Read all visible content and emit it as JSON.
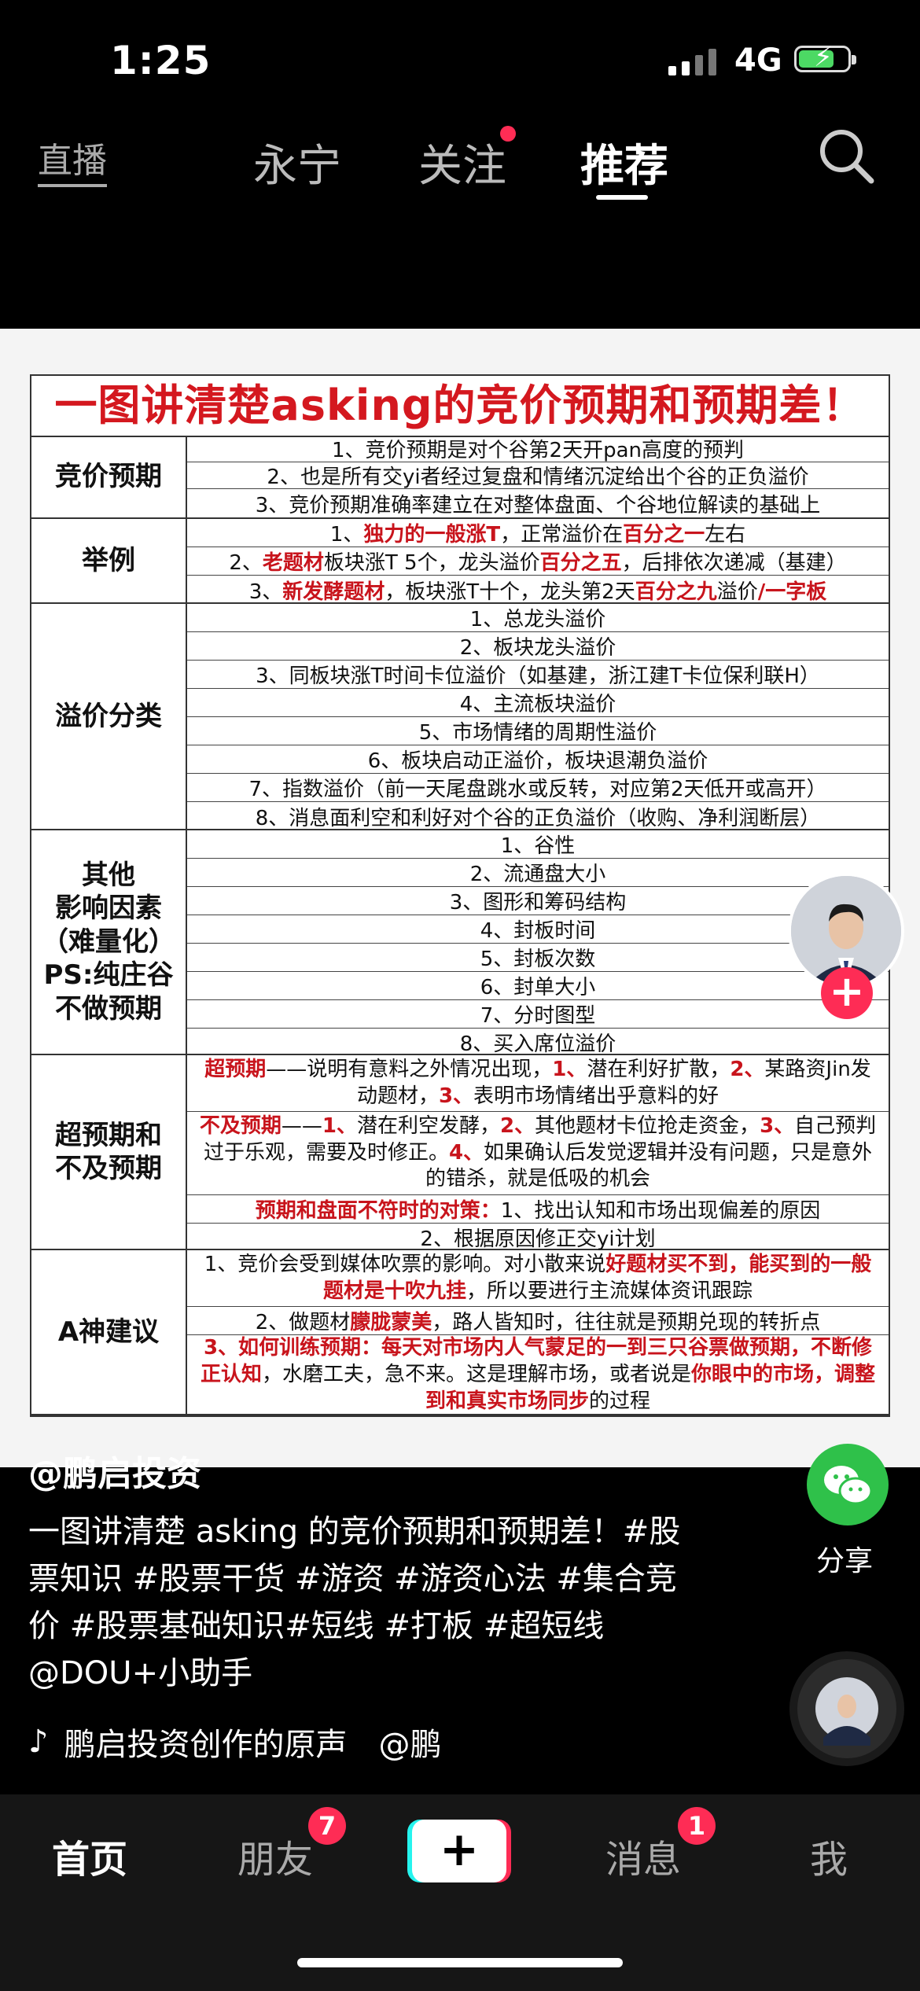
{
  "status": {
    "time": "1:25",
    "network": "4G"
  },
  "topnav": {
    "live": "直播",
    "local": "永宁",
    "follow": "关注",
    "recommend": "推荐"
  },
  "doc": {
    "title": "一图讲清楚asking的竞价预期和预期差！",
    "sections": [
      {
        "label": "竞价预期",
        "rows": [
          "1、竞价预期是对个谷第2天开pan高度的预判",
          "2、也是所有交yi者经过复盘和情绪沉淀给出个谷的正负溢价",
          "3、竞价预期准确率建立在对整体盘面、个谷地位解读的基础上"
        ]
      },
      {
        "label": "举例",
        "rows": [
          [
            "1、",
            {
              "r": "独力的一般涨T"
            },
            "，正常溢价在",
            {
              "r": "百分之一"
            },
            "左右"
          ],
          [
            "2、",
            {
              "r": "老题材"
            },
            "板块涨T 5个，龙头溢价",
            {
              "r": "百分之五"
            },
            "，后排依次递减（基建）"
          ],
          [
            "3、",
            {
              "r": "新发酵题材"
            },
            "，板块涨T十个，龙头第2天",
            {
              "r": "百分之九"
            },
            "溢价",
            {
              "r": "/一字板"
            }
          ]
        ]
      },
      {
        "label": "溢价分类",
        "rows": [
          "1、总龙头溢价",
          "2、板块龙头溢价",
          "3、同板块涨T时间卡位溢价（如基建，浙江建T卡位保利联H）",
          "4、主流板块溢价",
          "5、市场情绪的周期性溢价",
          "6、板块启动正溢价，板块退潮负溢价",
          "7、指数溢价（前一天尾盘跳水或反转，对应第2天低开或高开）",
          "8、消息面利空和利好对个谷的正负溢价（收购、净利润断层）"
        ]
      },
      {
        "label": "其他\n影响因素\n（难量化）\nPS:纯庄谷\n不做预期",
        "rows": [
          "1、谷性",
          "2、流通盘大小",
          "3、图形和筹码结构",
          "4、封板时间",
          "5、封板次数",
          "6、封单大小",
          "7、分时图型",
          "8、买入席位溢价"
        ]
      },
      {
        "label": "超预期和\n不及预期",
        "rows": [
          [
            {
              "r": "超预期"
            },
            "——说明有意料之外情况出现，",
            {
              "r": "1、"
            },
            "潜在利好扩散，",
            {
              "r": "2、"
            },
            "某路资Jin发动题材，",
            {
              "r": "3、"
            },
            "表明市场情绪出乎意料的好"
          ],
          [
            {
              "r": "不及预期"
            },
            "——",
            {
              "r": "1、"
            },
            "潜在利空发酵，",
            {
              "r": "2、"
            },
            "其他题材卡位抢走资金，",
            {
              "r": "3、"
            },
            "自己预判过于乐观，需要及时修正。",
            {
              "r": "4、"
            },
            "如果确认后发觉逻辑并没有问题，只是意外的错杀，就是低吸的机会"
          ],
          [
            {
              "r": "预期和盘面不符时的对策："
            },
            "1、找出认知和市场出现偏差的原因"
          ],
          "2、根据原因修正交yi计划"
        ]
      },
      {
        "label": "A神建议",
        "rows": [
          [
            "1、竞价会受到媒体吹票的影响。对小散来说",
            {
              "r": "好题材买不到，能买到的一般题材是十吹九挂"
            },
            "，所以要进行主流媒体资讯跟踪"
          ],
          [
            "2、做题材",
            {
              "r": "朦胧蒙美"
            },
            "，路人皆知时，往往就是预期兑现的转折点"
          ],
          [
            {
              "r": "3、如何训练预期：每天对市场内人气蒙足的一到三只谷票做预期，不断修正认知"
            },
            "，水磨工夫，急不来。这是理解市场，或者说是",
            {
              "r": "你眼中的市场，调整到和真实市场同步"
            },
            "的过程"
          ]
        ]
      }
    ]
  },
  "post": {
    "author": "@鹏启投资",
    "caption": "一图讲清楚 asking 的竞价预期和预期差！#股票知识 #股票干货 #游资 #游资心法 #集合竞价 #股票基础知识#短线 #打板 #超短线 @DOU+小助手",
    "music_title": "鹏启投资创作的原声",
    "music_credit": "@鹏"
  },
  "actions": {
    "share_label": "分享"
  },
  "tabs": {
    "home": "首页",
    "friends": "朋友",
    "friends_badge": "7",
    "messages": "消息",
    "messages_badge": "1",
    "me": "我"
  },
  "colors": {
    "accent": "#fe2c55",
    "title_red": "#d4181f",
    "share_green": "#2fc14a"
  }
}
